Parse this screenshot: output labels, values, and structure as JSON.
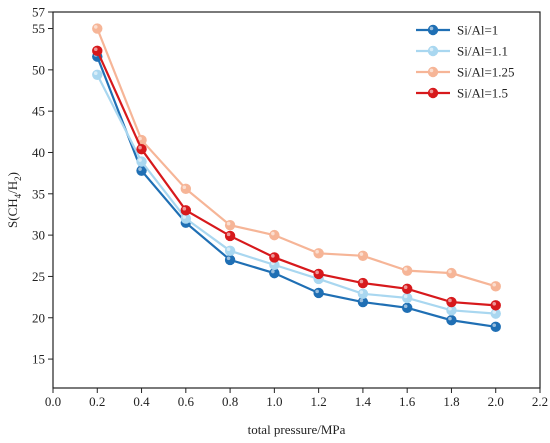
{
  "chart_data": {
    "type": "line",
    "title": "",
    "xlabel": "total pressure/MPa",
    "ylabel": {
      "base": "S(CH",
      "sub1": "4",
      "mid": "/H",
      "sub2": "2",
      "end": ")"
    },
    "xlim": [
      0.0,
      2.2
    ],
    "ylim": [
      11.5,
      57
    ],
    "x_ticks": [
      "0.0",
      "0.2",
      "0.4",
      "0.6",
      "0.8",
      "1.0",
      "1.2",
      "1.4",
      "1.6",
      "1.8",
      "2.0",
      "2.2"
    ],
    "y_ticks": [
      "15",
      "20",
      "25",
      "30",
      "35",
      "40",
      "45",
      "50",
      "55",
      "57"
    ],
    "grid": false,
    "legend_position": "top-right",
    "x": [
      0.2,
      0.4,
      0.6,
      0.8,
      1.0,
      1.2,
      1.4,
      1.6,
      1.8,
      2.0
    ],
    "series": [
      {
        "name": "Si/Al=1",
        "color": "#1f6fb4",
        "values": [
          51.6,
          37.8,
          31.5,
          27.0,
          25.4,
          23.0,
          21.9,
          21.2,
          19.7,
          18.9
        ]
      },
      {
        "name": "Si/Al=1.1",
        "color": "#a9d7f0",
        "values": [
          49.4,
          38.9,
          32.0,
          28.1,
          26.4,
          24.7,
          22.9,
          22.4,
          20.9,
          20.5
        ]
      },
      {
        "name": "Si/Al=1.25",
        "color": "#f6b597",
        "values": [
          55.0,
          41.5,
          35.6,
          31.2,
          30.0,
          27.8,
          27.5,
          25.7,
          25.4,
          23.8
        ]
      },
      {
        "name": "Si/Al=1.5",
        "color": "#d7191c",
        "values": [
          52.3,
          40.4,
          33.0,
          29.9,
          27.3,
          25.3,
          24.2,
          23.5,
          21.9,
          21.5
        ]
      }
    ]
  }
}
